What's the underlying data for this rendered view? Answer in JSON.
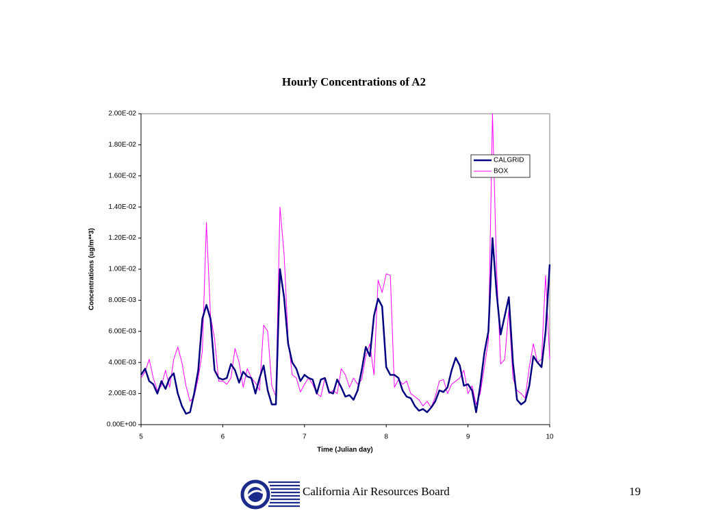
{
  "chart_data": {
    "type": "line",
    "title": "Hourly Concentrations of A2",
    "x_label": "Time (Julian day)",
    "y_label": "Concentrations (ug/m**3)",
    "x": [
      5,
      5.05,
      5.1,
      5.15,
      5.2,
      5.25,
      5.3,
      5.35,
      5.4,
      5.45,
      5.5,
      5.55,
      5.6,
      5.65,
      5.7,
      5.75,
      5.8,
      5.85,
      5.9,
      5.95,
      6,
      6.05,
      6.1,
      6.15,
      6.2,
      6.25,
      6.3,
      6.35,
      6.4,
      6.45,
      6.5,
      6.55,
      6.6,
      6.65,
      6.7,
      6.75,
      6.8,
      6.85,
      6.9,
      6.95,
      7,
      7.05,
      7.1,
      7.15,
      7.2,
      7.25,
      7.3,
      7.35,
      7.4,
      7.45,
      7.5,
      7.55,
      7.6,
      7.65,
      7.7,
      7.75,
      7.8,
      7.85,
      7.9,
      7.95,
      8,
      8.05,
      8.1,
      8.15,
      8.2,
      8.25,
      8.3,
      8.35,
      8.4,
      8.45,
      8.5,
      8.55,
      8.6,
      8.65,
      8.7,
      8.75,
      8.8,
      8.85,
      8.9,
      8.95,
      9,
      9.05,
      9.1,
      9.15,
      9.2,
      9.25,
      9.3,
      9.35,
      9.4,
      9.45,
      9.5,
      9.55,
      9.6,
      9.65,
      9.7,
      9.75,
      9.8,
      9.85,
      9.9,
      9.95,
      10
    ],
    "series": [
      {
        "name": "CALGRID",
        "color": "#000080",
        "width": 2.5,
        "values": [
          0.0032,
          0.0036,
          0.0028,
          0.0026,
          0.002,
          0.0028,
          0.0023,
          0.003,
          0.0033,
          0.002,
          0.0012,
          0.0007,
          0.0008,
          0.002,
          0.0035,
          0.0068,
          0.0077,
          0.0068,
          0.0035,
          0.003,
          0.0029,
          0.003,
          0.0039,
          0.0035,
          0.0027,
          0.0034,
          0.0031,
          0.003,
          0.002,
          0.003,
          0.0038,
          0.0022,
          0.0013,
          0.0013,
          0.01,
          0.0082,
          0.0052,
          0.004,
          0.0036,
          0.0028,
          0.0032,
          0.003,
          0.0029,
          0.002,
          0.0029,
          0.003,
          0.0021,
          0.002,
          0.0029,
          0.0024,
          0.0018,
          0.0019,
          0.0016,
          0.0022,
          0.0035,
          0.005,
          0.0044,
          0.007,
          0.0081,
          0.0076,
          0.0037,
          0.0032,
          0.0032,
          0.003,
          0.0022,
          0.0018,
          0.0017,
          0.0012,
          0.0009,
          0.001,
          0.0008,
          0.0011,
          0.0015,
          0.0022,
          0.0021,
          0.0024,
          0.0035,
          0.0043,
          0.0038,
          0.0025,
          0.0026,
          0.0022,
          0.0008,
          0.0025,
          0.0046,
          0.006,
          0.012,
          0.0085,
          0.0058,
          0.007,
          0.0082,
          0.004,
          0.0016,
          0.0013,
          0.0015,
          0.0025,
          0.0044,
          0.004,
          0.0037,
          0.006,
          0.0103
        ]
      },
      {
        "name": "BOX",
        "color": "#ff00ff",
        "width": 1,
        "values": [
          0.003,
          0.0034,
          0.0042,
          0.003,
          0.0022,
          0.0025,
          0.0035,
          0.0024,
          0.0042,
          0.005,
          0.004,
          0.0025,
          0.0015,
          0.0018,
          0.003,
          0.0047,
          0.013,
          0.007,
          0.0055,
          0.0028,
          0.0028,
          0.0026,
          0.003,
          0.0049,
          0.004,
          0.0024,
          0.0036,
          0.003,
          0.0027,
          0.0022,
          0.0064,
          0.006,
          0.0025,
          0.0018,
          0.014,
          0.011,
          0.0055,
          0.0032,
          0.003,
          0.0021,
          0.0026,
          0.003,
          0.0026,
          0.002,
          0.0018,
          0.003,
          0.002,
          0.0022,
          0.002,
          0.0036,
          0.0032,
          0.0024,
          0.003,
          0.0026,
          0.0029,
          0.0044,
          0.0052,
          0.0032,
          0.0093,
          0.0085,
          0.0097,
          0.0096,
          0.0024,
          0.0029,
          0.0026,
          0.0028,
          0.002,
          0.0018,
          0.0016,
          0.0012,
          0.0015,
          0.0011,
          0.0018,
          0.0028,
          0.0029,
          0.002,
          0.0026,
          0.0028,
          0.003,
          0.0035,
          0.002,
          0.0025,
          0.0013,
          0.002,
          0.0037,
          0.0054,
          0.02,
          0.01,
          0.0039,
          0.0042,
          0.0074,
          0.003,
          0.0022,
          0.002,
          0.0017,
          0.0037,
          0.0052,
          0.004,
          0.0042,
          0.0096,
          0.0042
        ]
      }
    ],
    "xlim": [
      5,
      10
    ],
    "xticks": [
      5,
      6,
      7,
      8,
      9,
      10
    ],
    "ylim": [
      0,
      0.02
    ],
    "yticks": [
      {
        "value": 0,
        "label": "0.00E+00"
      },
      {
        "value": 0.002,
        "label": "2.00E-03"
      },
      {
        "value": 0.004,
        "label": "4.00E-03"
      },
      {
        "value": 0.006,
        "label": "6.00E-03"
      },
      {
        "value": 0.008,
        "label": "8.00E-03"
      },
      {
        "value": 0.01,
        "label": "1.00E-02"
      },
      {
        "value": 0.012,
        "label": "1.20E-02"
      },
      {
        "value": 0.014,
        "label": "1.40E-02"
      },
      {
        "value": 0.016,
        "label": "1.60E-02"
      },
      {
        "value": 0.018,
        "label": "1.80E-02"
      },
      {
        "value": 0.02,
        "label": "2.00E-02"
      }
    ],
    "grid": false,
    "legend": "upper right"
  },
  "footer": {
    "organization": "California Air Resources Board",
    "page_number": 19
  }
}
